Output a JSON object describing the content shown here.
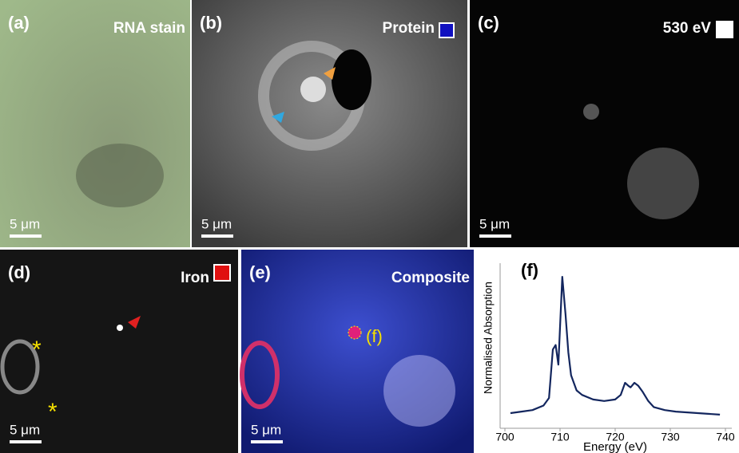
{
  "panels": [
    {
      "label": "(a)",
      "title": "RNA stain",
      "scale": "5 μm"
    },
    {
      "label": "(b)",
      "title": "Protein",
      "scale": "5 μm"
    },
    {
      "label": "(c)",
      "title": "530 eV",
      "scale": "5 μm"
    },
    {
      "label": "(d)",
      "title": "Iron",
      "scale": "5 μm",
      "annotations": [
        "*",
        "*"
      ]
    },
    {
      "label": "(e)",
      "title": "Composite",
      "scale": "5 μm",
      "annotations": [
        "(f)"
      ]
    }
  ],
  "chart_data": {
    "type": "line",
    "title": "(f)",
    "xlabel": "Energy (eV)",
    "ylabel": "Normalised Absorption",
    "x": [
      701,
      703,
      705,
      707,
      708,
      708.7,
      709.2,
      709.7,
      710.4,
      711,
      711.5,
      712,
      713,
      714,
      716,
      718,
      720,
      721,
      721.8,
      722.4,
      722.8,
      723.5,
      724.2,
      725,
      726,
      727,
      729,
      731,
      735,
      739
    ],
    "values": [
      0.1,
      0.11,
      0.12,
      0.15,
      0.2,
      0.52,
      0.55,
      0.42,
      1.0,
      0.75,
      0.5,
      0.35,
      0.25,
      0.22,
      0.19,
      0.18,
      0.19,
      0.22,
      0.3,
      0.28,
      0.27,
      0.3,
      0.28,
      0.24,
      0.18,
      0.14,
      0.12,
      0.11,
      0.1,
      0.09
    ],
    "color": "#13265e",
    "xlim": [
      700,
      740
    ],
    "xticks": [
      700,
      710,
      720,
      730,
      740
    ],
    "ylim": [
      0,
      1.09
    ]
  }
}
